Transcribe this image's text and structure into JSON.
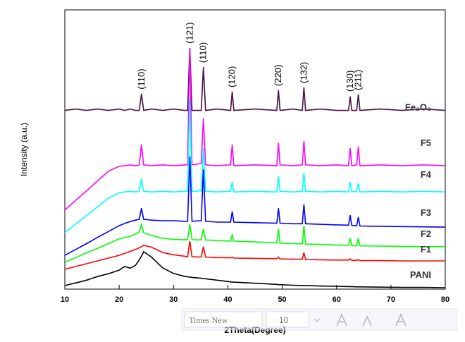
{
  "chart_data": {
    "type": "line",
    "xlabel": "2Theta(Degree)",
    "ylabel": "Intensity (a.u.)",
    "xlim": [
      10,
      80
    ],
    "ylim": [
      0,
      100
    ],
    "xticks": [
      10,
      20,
      30,
      40,
      50,
      60,
      70,
      80
    ],
    "x": [
      10,
      12,
      14,
      16,
      18,
      20,
      21,
      22,
      23,
      23.7,
      24.1,
      24.5,
      26,
      28,
      30,
      32,
      32.6,
      33,
      33.4,
      35.1,
      35.5,
      35.9,
      38,
      40.5,
      40.8,
      41.1,
      45,
      49,
      49.3,
      49.6,
      52,
      53.7,
      54,
      54.3,
      57,
      60,
      62.2,
      62.5,
      62.8,
      63.7,
      64,
      64.3,
      68,
      72,
      76,
      80
    ],
    "series": [
      {
        "name": "Fe₂O₃",
        "color": "#4a1040",
        "values": [
          64,
          64.5,
          64,
          64.5,
          64,
          64.5,
          64,
          64.5,
          64,
          64,
          70,
          64,
          64.5,
          64,
          64.5,
          64,
          64,
          86.4,
          64,
          64,
          79.5,
          64,
          64.5,
          64,
          70.7,
          64,
          64.5,
          64,
          71.2,
          64,
          64.5,
          64,
          72.2,
          64,
          64.5,
          64,
          64,
          69,
          64,
          64,
          69.7,
          64,
          64.5,
          64,
          64.5,
          64
        ]
      },
      {
        "name": "F5",
        "color": "#ff00ff",
        "values": [
          28.3,
          31.8,
          35.2,
          38.7,
          42.2,
          44,
          44.2,
          44.5,
          44.2,
          44.5,
          51.8,
          44.5,
          44.2,
          44.5,
          44.2,
          44.5,
          44.5,
          86.4,
          44.5,
          45,
          61.1,
          44.5,
          44.2,
          44.5,
          51.8,
          44.2,
          44.5,
          44.2,
          52.3,
          44.5,
          44.2,
          44.5,
          53,
          44.5,
          44.2,
          44.5,
          44.2,
          50.5,
          44.2,
          44.5,
          51,
          44.2,
          44.5,
          44.2,
          44.5,
          44.2
        ]
      },
      {
        "name": "F4",
        "color": "#00ffff",
        "values": [
          20.2,
          23.3,
          26.4,
          29.4,
          32.5,
          34.5,
          34.8,
          35,
          34.8,
          35,
          39.6,
          35,
          34.8,
          35,
          34.8,
          35,
          35,
          68.2,
          35,
          35.2,
          50.5,
          35,
          34.8,
          35,
          38.4,
          34.8,
          35,
          34.8,
          40.4,
          35,
          34.8,
          35,
          41.7,
          35,
          34.8,
          35,
          34.8,
          38.4,
          34.8,
          35,
          37.9,
          34.8,
          35,
          34.8,
          35,
          34.8
        ]
      },
      {
        "name": "F3",
        "color": "#0000ff",
        "values": [
          12.1,
          14.2,
          16.3,
          18.5,
          20.6,
          22.7,
          23.5,
          24.2,
          24.7,
          25,
          29,
          25,
          24.7,
          24.5,
          24.5,
          24.3,
          24.3,
          47.5,
          24.3,
          24.5,
          42.9,
          24.3,
          24,
          24,
          27.8,
          24,
          23.8,
          23.6,
          29,
          23.6,
          23.4,
          23.4,
          30.3,
          23.4,
          23.2,
          23,
          22.9,
          26.5,
          22.8,
          22.7,
          25.8,
          22.6,
          22.5,
          22.4,
          22.3,
          22.2
        ]
      },
      {
        "name": "F2",
        "color": "#00ff00",
        "values": [
          9.6,
          11.3,
          13,
          14.6,
          16.3,
          18,
          18.4,
          18.9,
          19.8,
          20.5,
          23.2,
          20.2,
          19.2,
          18.2,
          17.8,
          17.7,
          17.7,
          23.2,
          17.7,
          17.6,
          21.5,
          17.6,
          17.4,
          17.2,
          19.4,
          17.2,
          16.9,
          16.6,
          21.5,
          16.5,
          16.3,
          16.2,
          22.7,
          16.1,
          16,
          15.8,
          15.7,
          18.2,
          15.6,
          15.5,
          18.2,
          15.5,
          15.4,
          15.3,
          15.2,
          15.2
        ]
      },
      {
        "name": "F1",
        "color": "#ff0000",
        "values": [
          7.1,
          8.1,
          9.1,
          10.1,
          11.1,
          12.1,
          12.8,
          13.5,
          14.2,
          14.8,
          15.2,
          15.7,
          15,
          13.1,
          12.3,
          11.8,
          11.6,
          17.2,
          11.6,
          11.5,
          15.2,
          11.5,
          11.3,
          11.2,
          11.5,
          11.1,
          11,
          10.9,
          11.5,
          10.8,
          10.7,
          10.7,
          13.1,
          10.6,
          10.5,
          10.4,
          10.4,
          10.8,
          10.3,
          10.3,
          10.6,
          10.2,
          10.2,
          10.1,
          10.1,
          10.1
        ]
      },
      {
        "name": "PANI",
        "color": "#000000",
        "values": [
          1.3,
          2.2,
          3.2,
          4.5,
          5.5,
          6.8,
          8.1,
          7.5,
          8.5,
          10.5,
          11.8,
          13.4,
          11.4,
          7.6,
          5.6,
          4.6,
          4.4,
          4.3,
          4.2,
          3.9,
          3.8,
          3.7,
          3.2,
          2.6,
          2.5,
          2.5,
          2.1,
          1.7,
          1.6,
          1.6,
          1.4,
          1.3,
          1.3,
          1.3,
          1.1,
          1,
          0.9,
          0.9,
          0.9,
          0.8,
          0.8,
          0.8,
          0.7,
          0.6,
          0.6,
          0.5
        ]
      }
    ],
    "annotations": [
      {
        "x": 24.1,
        "text": "(110)"
      },
      {
        "x": 33,
        "text": "(121)"
      },
      {
        "x": 35.5,
        "text": "(110)"
      },
      {
        "x": 40.8,
        "text": "(120)"
      },
      {
        "x": 49.3,
        "text": "(220)"
      },
      {
        "x": 54,
        "text": "(132)"
      },
      {
        "x": 62.5,
        "text": "(130)"
      },
      {
        "x": 64,
        "text": "(211)"
      }
    ]
  },
  "toolbar": {
    "font": "Times New",
    "size": "10"
  }
}
